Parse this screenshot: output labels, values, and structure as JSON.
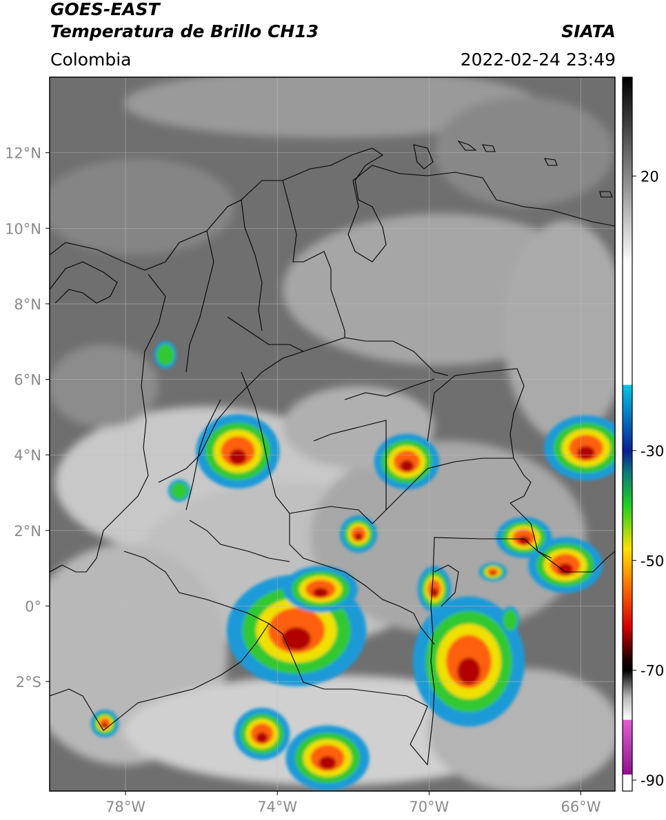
{
  "header": {
    "title_line1": "GOES-EAST",
    "title_line2": "Temperatura de Brillo CH13",
    "source": "SIATA",
    "region": "Colombia",
    "datetime": "2022-02-24 23:49"
  },
  "map": {
    "lat_ticks": [
      "12°N",
      "10°N",
      "8°N",
      "6°N",
      "4°N",
      "2°N",
      "0°",
      "2°S"
    ],
    "lon_ticks": [
      "78°W",
      "74°W",
      "70°W",
      "66°W"
    ],
    "lat_values": [
      12,
      10,
      8,
      6,
      4,
      2,
      0,
      -2
    ],
    "lon_values": [
      -78,
      -74,
      -70,
      -66
    ],
    "extent": {
      "lon_min": -80,
      "lon_max": -65.1,
      "lat_min": -4.9,
      "lat_max": 14
    },
    "grid": true
  },
  "colorbar": {
    "tick_labels": [
      "20",
      "-30",
      "-50",
      "-70",
      "-90"
    ],
    "tick_values": [
      20,
      -30,
      -50,
      -70,
      -90
    ],
    "range": [
      -92,
      38
    ],
    "colors": {
      "top": "#000000",
      "warm": "#ffffff",
      "cyan": "#00c8e6",
      "blue": "#0a1e96",
      "green": "#20d020",
      "yellow": "#ffe000",
      "orange": "#ff6a00",
      "red": "#d80000",
      "dark": "#200000",
      "magenta": "#e060d0",
      "purple": "#901090"
    }
  },
  "storm_colors": {
    "outer": "#1a9ad8",
    "mid": "#30c830",
    "inner": "#f0e000",
    "core": "#ff6010",
    "center": "#b00000"
  }
}
